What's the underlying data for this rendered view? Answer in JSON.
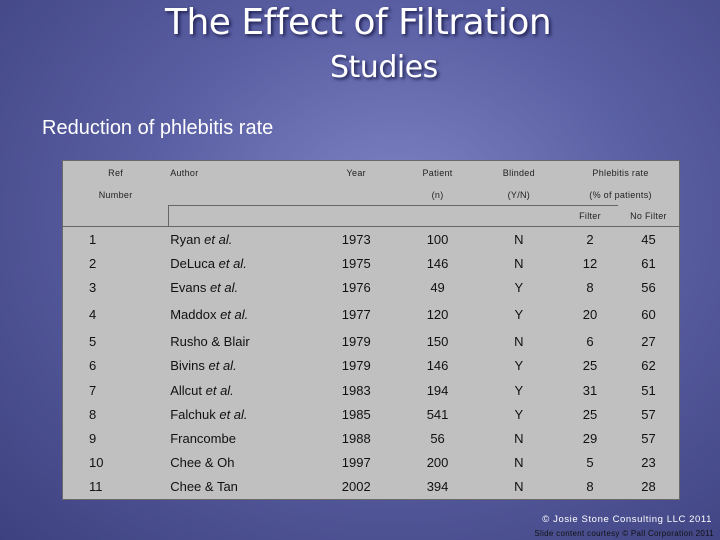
{
  "title": {
    "line1": "The Effect of Filtration",
    "line2": "Studies"
  },
  "subtitle": "Reduction of phlebitis rate",
  "table": {
    "headers": {
      "ref_top": "Ref",
      "ref_bottom": "Number",
      "author": "Author",
      "year": "Year",
      "patient_top": "Patient",
      "patient_bottom": "(n)",
      "blinded_top": "Blinded",
      "blinded_bottom": "(Y/N)",
      "phlebitis_top": "Phlebitis rate",
      "phlebitis_bottom": "(% of patients)",
      "filter": "Filter",
      "no_filter": "No Filter"
    },
    "rows": [
      {
        "ref": "1",
        "author": "Ryan",
        "etal": " et al.",
        "year": "1973",
        "patients": "100",
        "blinded": "N",
        "filter": "2",
        "no_filter": "45"
      },
      {
        "ref": "2",
        "author": "DeLuca",
        "etal": " et al.",
        "year": "1975",
        "patients": "146",
        "blinded": "N",
        "filter": "12",
        "no_filter": "61"
      },
      {
        "ref": "3",
        "author": "Evans",
        "etal": " et al.",
        "year": "1976",
        "patients": "49",
        "blinded": "Y",
        "filter": "8",
        "no_filter": "56"
      },
      {
        "ref": "4",
        "author": "Maddox",
        "etal": " et al.",
        "year": "1977",
        "patients": "120",
        "blinded": "Y",
        "filter": "20",
        "no_filter": "60"
      },
      {
        "ref": "5",
        "author": "Rusho & Blair",
        "etal": "",
        "year": "1979",
        "patients": "150",
        "blinded": "N",
        "filter": "6",
        "no_filter": "27"
      },
      {
        "ref": "6",
        "author": "Bivins",
        "etal": " et al.",
        "year": "1979",
        "patients": "146",
        "blinded": "Y",
        "filter": "25",
        "no_filter": "62"
      },
      {
        "ref": "7",
        "author": "Allcut",
        "etal": " et al.",
        "year": "1983",
        "patients": "194",
        "blinded": "Y",
        "filter": "31",
        "no_filter": "51"
      },
      {
        "ref": "8",
        "author": "Falchuk",
        "etal": " et al.",
        "year": "1985",
        "patients": "541",
        "blinded": "Y",
        "filter": "25",
        "no_filter": "57"
      },
      {
        "ref": "9",
        "author": "Francombe",
        "etal": "",
        "year": "1988",
        "patients": "56",
        "blinded": "N",
        "filter": "29",
        "no_filter": "57"
      },
      {
        "ref": "10",
        "author": "Chee & Oh",
        "etal": "",
        "year": "1997",
        "patients": "200",
        "blinded": "N",
        "filter": "5",
        "no_filter": "23"
      },
      {
        "ref": "11",
        "author": "Chee & Tan",
        "etal": "",
        "year": "2002",
        "patients": "394",
        "blinded": "N",
        "filter": "8",
        "no_filter": "28"
      }
    ]
  },
  "footer": {
    "copyright": "© Josie Stone Consulting LLC 2011",
    "courtesy": "Slide content courtesy © Pall Corporation 2011"
  }
}
